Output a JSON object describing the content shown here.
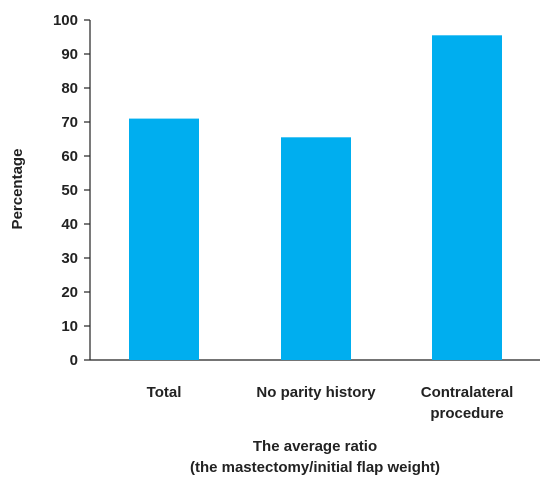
{
  "chart_data": {
    "type": "bar",
    "categories": [
      [
        "Total"
      ],
      [
        "No parity history"
      ],
      [
        "Contralateral",
        "procedure"
      ]
    ],
    "values": [
      71,
      65.5,
      95.5
    ],
    "bar_color": "#00aeef",
    "axis_color": "#222222",
    "title": "",
    "xlabel": [
      "The average ratio",
      "(the mastectomy/initial flap weight)"
    ],
    "ylabel": "Percentage",
    "ylim": [
      0,
      100
    ],
    "yticks": [
      0,
      10,
      20,
      30,
      40,
      50,
      60,
      70,
      80,
      90,
      100
    ],
    "grid": false,
    "legend": "none"
  }
}
